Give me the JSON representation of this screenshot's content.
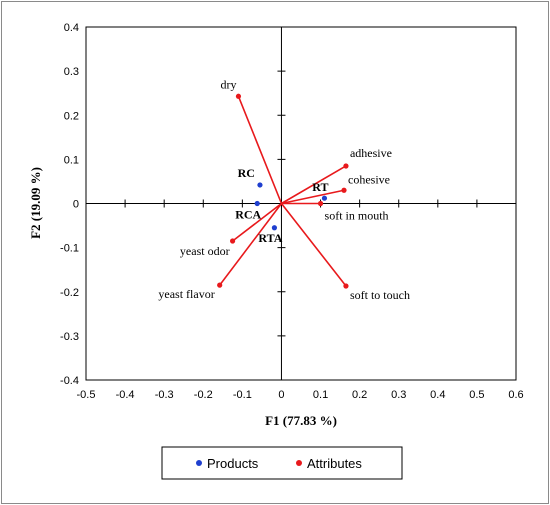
{
  "chart_data": {
    "type": "scatter",
    "xlabel": "F1 (77.83 %)",
    "ylabel": "F2 (19.09 %)",
    "xlim": [
      -0.5,
      0.6
    ],
    "ylim": [
      -0.4,
      0.4
    ],
    "xticks": [
      "-0.5",
      "-0.4",
      "-0.3",
      "-0.2",
      "-0.1",
      "0",
      "0.1",
      "0.2",
      "0.3",
      "0.4",
      "0.5",
      "0.6"
    ],
    "yticks": [
      "0.4",
      "0.3",
      "0.2",
      "0.1",
      "0",
      "-0.1",
      "-0.2",
      "-0.3",
      "-0.4"
    ],
    "grid": false,
    "legend_position": "bottom",
    "series": [
      {
        "name": "Products",
        "color": "#1f3fcf",
        "points": [
          {
            "label": "RC",
            "x": -0.055,
            "y": 0.042
          },
          {
            "label": "RCA",
            "x": -0.062,
            "y": 0.0
          },
          {
            "label": "RTA",
            "x": -0.018,
            "y": -0.055
          },
          {
            "label": "RT",
            "x": 0.11,
            "y": 0.012
          }
        ]
      },
      {
        "name": "Attributes",
        "color": "#e8191c",
        "vectors_from_origin": true,
        "points": [
          {
            "label": "dry",
            "x": -0.11,
            "y": 0.243
          },
          {
            "label": "adhesive",
            "x": 0.165,
            "y": 0.085
          },
          {
            "label": "cohesive",
            "x": 0.16,
            "y": 0.03
          },
          {
            "label": "soft in mouth",
            "x": 0.1,
            "y": 0.0
          },
          {
            "label": "soft to touch",
            "x": 0.165,
            "y": -0.187
          },
          {
            "label": "yeast odor",
            "x": -0.125,
            "y": -0.085
          },
          {
            "label": "yeast flavor",
            "x": -0.158,
            "y": -0.185
          }
        ]
      }
    ]
  }
}
